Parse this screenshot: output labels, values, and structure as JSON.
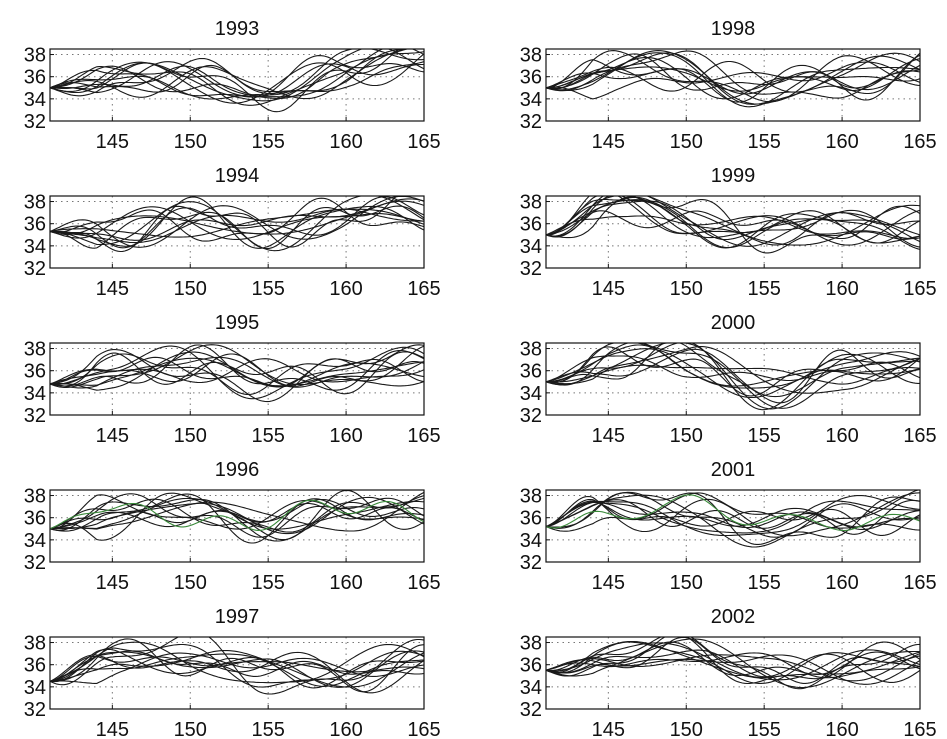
{
  "figure": {
    "line_color": "#1a1a1a",
    "grid_color": "#777777",
    "tint_color": "#3a8a3a"
  },
  "chart_data": [
    {
      "type": "line",
      "title": "1993",
      "x_ticks": [
        145,
        150,
        155,
        160,
        165
      ],
      "y_ticks": [
        32,
        34,
        36,
        38
      ],
      "xlim": [
        141,
        165
      ],
      "ylim": [
        32,
        38.5
      ],
      "grid": true,
      "series_count": 12,
      "mean_profile": {
        "x": [
          141,
          145,
          150,
          155,
          160,
          165
        ],
        "y": [
          35.0,
          35.8,
          35.9,
          34.2,
          36.8,
          37.8
        ]
      }
    },
    {
      "type": "line",
      "title": "1998",
      "x_ticks": [
        145,
        150,
        155,
        160,
        165
      ],
      "y_ticks": [
        32,
        34,
        36,
        38
      ],
      "xlim": [
        141,
        165
      ],
      "ylim": [
        32,
        38.5
      ],
      "grid": true,
      "series_count": 12,
      "mean_profile": {
        "x": [
          141,
          145,
          150,
          155,
          160,
          165
        ],
        "y": [
          35.0,
          36.2,
          36.8,
          34.5,
          35.8,
          36.8
        ]
      }
    },
    {
      "type": "line",
      "title": "1994",
      "x_ticks": [
        145,
        150,
        155,
        160,
        165
      ],
      "y_ticks": [
        32,
        34,
        36,
        38
      ],
      "xlim": [
        141,
        165
      ],
      "ylim": [
        32,
        38.5
      ],
      "grid": true,
      "series_count": 12,
      "mean_profile": {
        "x": [
          141,
          145,
          150,
          155,
          160,
          165
        ],
        "y": [
          35.3,
          35.3,
          36.3,
          35.5,
          36.5,
          37.2
        ]
      }
    },
    {
      "type": "line",
      "title": "1999",
      "x_ticks": [
        145,
        150,
        155,
        160,
        165
      ],
      "y_ticks": [
        32,
        34,
        36,
        38
      ],
      "xlim": [
        141,
        165
      ],
      "ylim": [
        32,
        38.5
      ],
      "grid": true,
      "series_count": 12,
      "mean_profile": {
        "x": [
          141,
          145,
          150,
          155,
          160,
          165
        ],
        "y": [
          35.0,
          37.3,
          36.8,
          35.0,
          35.8,
          35.6
        ]
      }
    },
    {
      "type": "line",
      "title": "1995",
      "x_ticks": [
        145,
        150,
        155,
        160,
        165
      ],
      "y_ticks": [
        32,
        34,
        36,
        38
      ],
      "xlim": [
        141,
        165
      ],
      "ylim": [
        32,
        38.5
      ],
      "grid": true,
      "series_count": 12,
      "mean_profile": {
        "x": [
          141,
          145,
          150,
          155,
          160,
          165
        ],
        "y": [
          34.8,
          35.8,
          36.6,
          35.2,
          35.8,
          36.5
        ]
      }
    },
    {
      "type": "line",
      "title": "2000",
      "x_ticks": [
        145,
        150,
        155,
        160,
        165
      ],
      "y_ticks": [
        32,
        34,
        36,
        38
      ],
      "xlim": [
        141,
        165
      ],
      "ylim": [
        32,
        38.5
      ],
      "grid": true,
      "series_count": 12,
      "mean_profile": {
        "x": [
          141,
          145,
          150,
          155,
          160,
          165
        ],
        "y": [
          35.0,
          36.8,
          37.0,
          34.2,
          36.2,
          36.6
        ]
      }
    },
    {
      "type": "line",
      "title": "1996",
      "x_ticks": [
        145,
        150,
        155,
        160,
        165
      ],
      "y_ticks": [
        32,
        34,
        36,
        38
      ],
      "xlim": [
        141,
        165
      ],
      "ylim": [
        32,
        38.5
      ],
      "grid": true,
      "series_count": 12,
      "mean_profile": {
        "x": [
          141,
          145,
          150,
          155,
          160,
          165
        ],
        "y": [
          35.0,
          36.5,
          36.8,
          35.6,
          36.2,
          37.0
        ]
      }
    },
    {
      "type": "line",
      "title": "2001",
      "x_ticks": [
        145,
        150,
        155,
        160,
        165
      ],
      "y_ticks": [
        32,
        34,
        36,
        38
      ],
      "xlim": [
        141,
        165
      ],
      "ylim": [
        32,
        38.5
      ],
      "grid": true,
      "series_count": 12,
      "mean_profile": {
        "x": [
          141,
          145,
          150,
          155,
          160,
          165
        ],
        "y": [
          35.2,
          37.0,
          36.8,
          34.8,
          36.0,
          36.8
        ]
      }
    },
    {
      "type": "line",
      "title": "1997",
      "x_ticks": [
        145,
        150,
        155,
        160,
        165
      ],
      "y_ticks": [
        32,
        34,
        36,
        38
      ],
      "xlim": [
        141,
        165
      ],
      "ylim": [
        32,
        38.5
      ],
      "grid": true,
      "series_count": 12,
      "mean_profile": {
        "x": [
          141,
          145,
          150,
          155,
          160,
          165
        ],
        "y": [
          34.5,
          36.5,
          37.0,
          35.0,
          35.5,
          36.0
        ]
      }
    },
    {
      "type": "line",
      "title": "2002",
      "x_ticks": [
        145,
        150,
        155,
        160,
        165
      ],
      "y_ticks": [
        32,
        34,
        36,
        38
      ],
      "xlim": [
        141,
        165
      ],
      "ylim": [
        32,
        38.5
      ],
      "grid": true,
      "series_count": 12,
      "mean_profile": {
        "x": [
          141,
          145,
          150,
          155,
          160,
          165
        ],
        "y": [
          35.5,
          36.3,
          37.0,
          35.8,
          35.6,
          36.0
        ]
      }
    }
  ]
}
